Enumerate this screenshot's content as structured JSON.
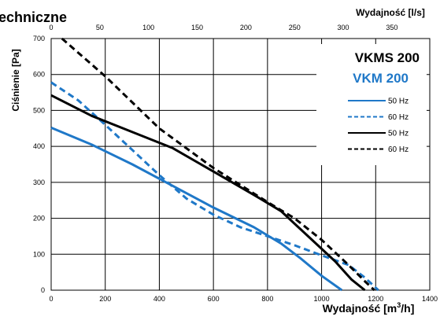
{
  "header": {
    "title_fragment": "echniczne"
  },
  "chart_data": {
    "type": "line",
    "x_top_label": "Wydajność [l/s]",
    "x_bottom_label_prefix": "Wydajność [m",
    "x_bottom_label_sup": "3",
    "x_bottom_label_suffix": "/h]",
    "ylabel": "Ciśnienie [Pa]",
    "xlim": [
      0,
      1400
    ],
    "ylim": [
      0,
      700
    ],
    "x_ticks": [
      "0",
      "200",
      "400",
      "600",
      "800",
      "1000",
      "1200",
      "1400"
    ],
    "x_tick_values": [
      0,
      200,
      400,
      600,
      800,
      1000,
      1200,
      1400
    ],
    "y_ticks": [
      "0",
      "100",
      "200",
      "300",
      "400",
      "500",
      "600",
      "700"
    ],
    "y_tick_values": [
      0,
      100,
      200,
      300,
      400,
      500,
      600,
      700
    ],
    "x_top_ticks": [
      "0",
      "50",
      "100",
      "150",
      "200",
      "250",
      "300",
      "350"
    ],
    "x_top_tick_values": [
      0,
      50,
      100,
      150,
      200,
      250,
      300,
      350
    ],
    "grid": true,
    "legend": {
      "groups": [
        {
          "label": "VKMS 200",
          "color": "#000000"
        },
        {
          "label": "VKM 200",
          "color": "#1f78c8"
        }
      ],
      "entries": [
        {
          "label": "50 Hz",
          "color": "#1f78c8",
          "dash": "solid"
        },
        {
          "label": "60 Hz",
          "color": "#1f78c8",
          "dash": "dashed"
        },
        {
          "label": "50 Hz",
          "color": "#000000",
          "dash": "solid"
        },
        {
          "label": "60 Hz",
          "color": "#000000",
          "dash": "dashed"
        }
      ]
    },
    "series": [
      {
        "color": "#1f78c8",
        "dash": "solid",
        "points": [
          [
            0,
            452
          ],
          [
            150,
            405
          ],
          [
            300,
            350
          ],
          [
            450,
            290
          ],
          [
            600,
            230
          ],
          [
            750,
            175
          ],
          [
            850,
            130
          ],
          [
            920,
            90
          ],
          [
            1000,
            40
          ],
          [
            1075,
            0
          ]
        ]
      },
      {
        "color": "#1f78c8",
        "dash": "dashed",
        "points": [
          [
            0,
            578
          ],
          [
            100,
            528
          ],
          [
            200,
            460
          ],
          [
            300,
            390
          ],
          [
            400,
            320
          ],
          [
            500,
            255
          ],
          [
            600,
            210
          ],
          [
            700,
            175
          ],
          [
            800,
            150
          ],
          [
            900,
            125
          ],
          [
            1000,
            97
          ],
          [
            1100,
            70
          ],
          [
            1160,
            35
          ],
          [
            1210,
            0
          ]
        ]
      },
      {
        "color": "#000000",
        "dash": "solid",
        "points": [
          [
            0,
            542
          ],
          [
            150,
            485
          ],
          [
            300,
            440
          ],
          [
            450,
            395
          ],
          [
            600,
            330
          ],
          [
            750,
            265
          ],
          [
            850,
            220
          ],
          [
            950,
            150
          ],
          [
            1050,
            80
          ],
          [
            1110,
            30
          ],
          [
            1160,
            0
          ]
        ]
      },
      {
        "color": "#000000",
        "dash": "dashed",
        "points": [
          [
            40,
            700
          ],
          [
            200,
            595
          ],
          [
            400,
            450
          ],
          [
            600,
            340
          ],
          [
            800,
            245
          ],
          [
            900,
            200
          ],
          [
            1000,
            140
          ],
          [
            1100,
            70
          ],
          [
            1160,
            25
          ],
          [
            1195,
            0
          ]
        ]
      }
    ]
  }
}
